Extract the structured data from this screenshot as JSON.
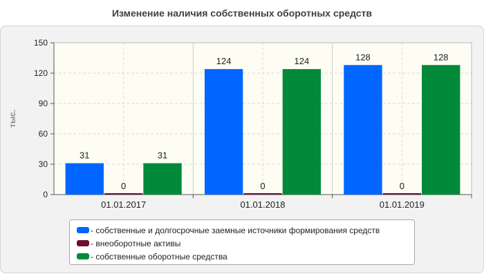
{
  "chart_data": {
    "type": "bar",
    "title": "Изменение наличия собственных оборотных средств",
    "ylabel": "тыс.",
    "xlabel": "",
    "categories": [
      "01.01.2017",
      "01.01.2018",
      "01.01.2019"
    ],
    "ylim": [
      0,
      150
    ],
    "yticks": [
      0,
      30,
      60,
      90,
      120,
      150
    ],
    "grid": true,
    "legend_position": "bottom",
    "series": [
      {
        "name": "- собственные и долгосрочные заемные источники формирования средств",
        "values": [
          31,
          124,
          128
        ],
        "color": "#0066ff"
      },
      {
        "name": "- внеоборотные активы",
        "values": [
          0,
          0,
          0
        ],
        "color": "#6b0f2e"
      },
      {
        "name": "- собственные оборотные средства",
        "values": [
          31,
          124,
          128
        ],
        "color": "#008a3a"
      }
    ]
  }
}
